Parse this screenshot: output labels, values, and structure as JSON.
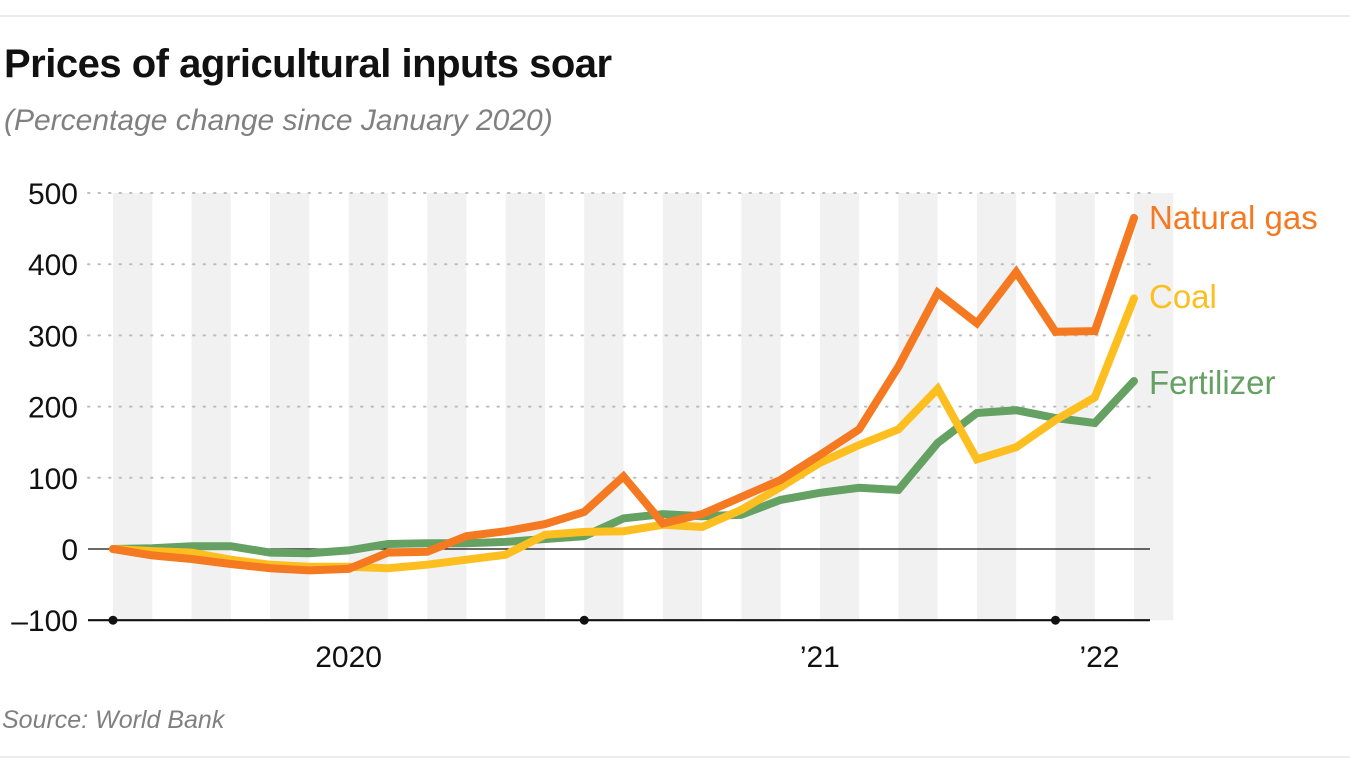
{
  "title": "Prices of agricultural inputs soar",
  "subtitle": "(Percentage change since January 2020)",
  "source": "Source: World Bank",
  "chart_data": {
    "type": "line",
    "title": "Prices of agricultural inputs soar",
    "subtitle": "(Percentage change since January 2020)",
    "xlabel": "",
    "ylabel": "",
    "ylim": [
      -100,
      500
    ],
    "yticks": [
      500,
      400,
      300,
      200,
      100,
      0,
      -100
    ],
    "ytick_labels": [
      "500",
      "400",
      "300",
      "200",
      "100",
      "0",
      "–100"
    ],
    "xtick_labels": [
      "2020",
      "’21",
      "’22"
    ],
    "grid": true,
    "legend": "inline labels at line ends (right)",
    "x": [
      "2020-01",
      "2020-02",
      "2020-03",
      "2020-04",
      "2020-05",
      "2020-06",
      "2020-07",
      "2020-08",
      "2020-09",
      "2020-10",
      "2020-11",
      "2020-12",
      "2021-01",
      "2021-02",
      "2021-03",
      "2021-04",
      "2021-05",
      "2021-06",
      "2021-07",
      "2021-08",
      "2021-09",
      "2021-10",
      "2021-11",
      "2021-12",
      "2022-01",
      "2022-02",
      "2022-03"
    ],
    "series": [
      {
        "name": "Fertilizer",
        "color": "#65a163",
        "values": [
          0,
          1,
          4,
          4,
          -5,
          -6,
          -2,
          7,
          8,
          8,
          10,
          14,
          18,
          43,
          49,
          46,
          48,
          69,
          79,
          86,
          83,
          149,
          191,
          195,
          184,
          177,
          236
        ]
      },
      {
        "name": "Coal",
        "color": "#fdbf20",
        "values": [
          0,
          -3,
          -5,
          -15,
          -22,
          -25,
          -25,
          -27,
          -22,
          -15,
          -8,
          20,
          24,
          25,
          34,
          31,
          55,
          87,
          121,
          146,
          168,
          225,
          126,
          143,
          181,
          213,
          352
        ]
      },
      {
        "name": "Natural gas",
        "color": "#f47920",
        "values": [
          0,
          -9,
          -14,
          -21,
          -27,
          -30,
          -28,
          -5,
          -4,
          18,
          25,
          35,
          52,
          102,
          36,
          49,
          73,
          97,
          132,
          168,
          256,
          360,
          317,
          389,
          305,
          306,
          465
        ]
      }
    ]
  }
}
